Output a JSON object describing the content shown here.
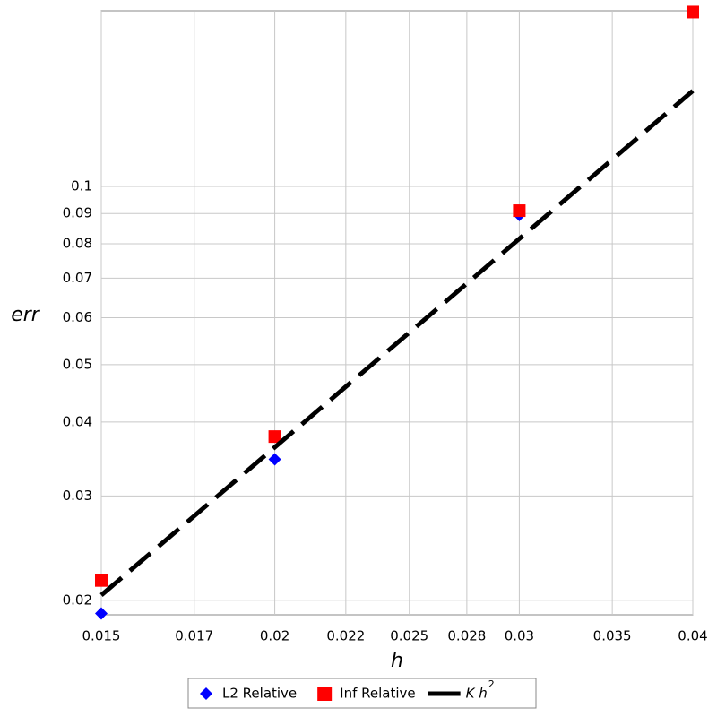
{
  "chart_data": {
    "type": "scatter",
    "xlabel": "h",
    "ylabel": "err",
    "xscale": "log",
    "yscale": "log",
    "grid": true,
    "xlim": [
      0.015,
      0.04
    ],
    "ylim": [
      0.0189,
      0.198
    ],
    "xticks": [
      0.015,
      {
        "value": 0.0175,
        "label": "0.017"
      },
      0.02,
      {
        "value": 0.0225,
        "label": "0.022"
      },
      0.025,
      {
        "value": 0.0275,
        "label": "0.028"
      },
      0.03,
      0.035,
      0.04
    ],
    "yticks": [
      0.02,
      0.03,
      0.04,
      0.05,
      0.06,
      0.07,
      0.08,
      0.09,
      0.1
    ],
    "legend": "bottom",
    "series": [
      {
        "name": "L2 Relative",
        "color": "#0000ff",
        "marker": "diamond",
        "x": [
          0.015,
          0.02,
          0.03,
          0.04
        ],
        "values": [
          0.019,
          0.0346,
          0.0895,
          0.197
        ]
      },
      {
        "name": "Inf Relative",
        "color": "#ff0000",
        "marker": "square",
        "x": [
          0.015,
          0.02,
          0.03,
          0.04
        ],
        "values": [
          0.0216,
          0.0378,
          0.091,
          0.197
        ]
      },
      {
        "name": "K h",
        "superscript": "2",
        "color": "#000000",
        "marker": "dashed-line",
        "x": [
          0.015,
          0.04
        ],
        "values": [
          0.0204,
          0.145
        ]
      }
    ]
  }
}
